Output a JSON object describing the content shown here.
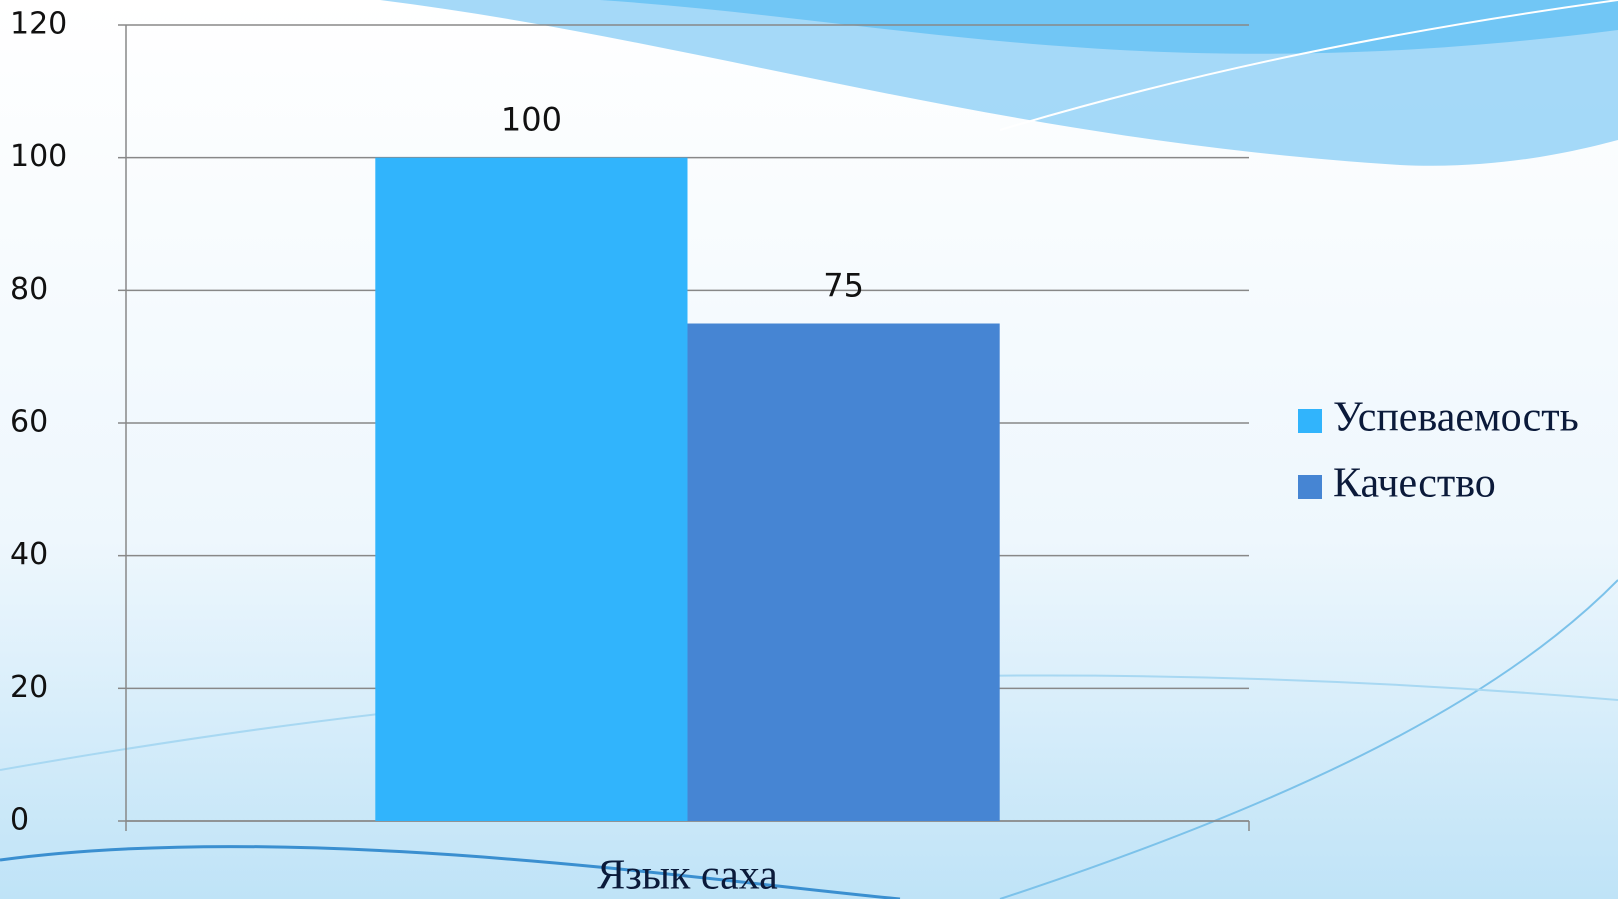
{
  "chart_data": {
    "type": "bar",
    "categories": [
      "Язык саха"
    ],
    "series": [
      {
        "name": "Успеваемость",
        "color": "#31b4fc",
        "values": [
          100
        ]
      },
      {
        "name": "Качество",
        "color": "#4685d3",
        "values": [
          75
        ]
      }
    ],
    "ylim": [
      0,
      120
    ],
    "yticks": [
      0,
      20,
      40,
      60,
      80,
      100,
      120
    ],
    "grid": true,
    "legend": "right"
  }
}
